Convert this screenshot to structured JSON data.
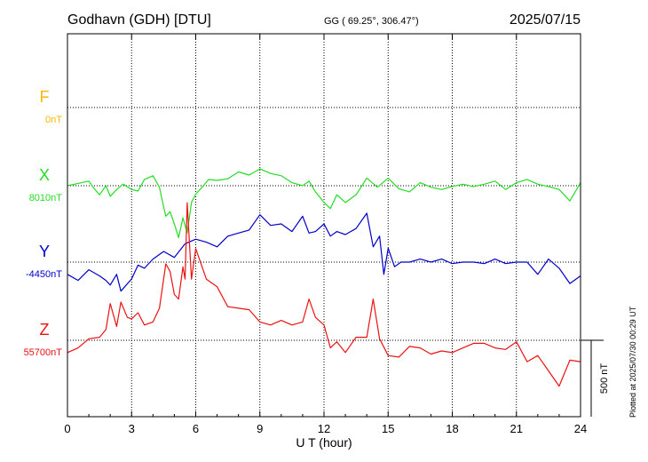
{
  "header": {
    "station": "Godhavn (GDH)  [DTU]",
    "coords": "GG ( 69.25°, 306.47°)",
    "date": "2025/07/15"
  },
  "side_note": "Plotted at 2025/07/30 00:29 UT",
  "colors": {
    "F": "#f5b800",
    "X": "#22dd22",
    "Y": "#0000cc",
    "Z": "#ee1111"
  },
  "chart_data": {
    "type": "line",
    "title": "Godhavn (GDH)  [DTU]",
    "xlabel": "U T (hour)",
    "xlim": [
      0,
      24
    ],
    "xticks": [
      "0",
      "3",
      "6",
      "9",
      "12",
      "15",
      "18",
      "21",
      "24"
    ],
    "scale_bar": {
      "value_nT": 500,
      "label": "500 nT"
    },
    "series": [
      {
        "name": "F",
        "baseline_label": "0nT",
        "baseline": 0,
        "x": [],
        "values": []
      },
      {
        "name": "X",
        "baseline_label": "8010nT",
        "baseline": 8010,
        "x": [
          0,
          0.5,
          1,
          1.2,
          1.5,
          1.8,
          2,
          2.3,
          2.6,
          3,
          3.3,
          3.6,
          4,
          4.3,
          4.5,
          4.6,
          4.8,
          5,
          5.2,
          5.4,
          5.6,
          5.8,
          6,
          6.3,
          6.6,
          7,
          7.5,
          8,
          8.5,
          9,
          9.5,
          10,
          10.5,
          11,
          11.3,
          11.6,
          12,
          12.3,
          12.6,
          13,
          13.5,
          14,
          14.5,
          15,
          15.5,
          16,
          16.5,
          17,
          17.5,
          18,
          18.5,
          19,
          19.5,
          20,
          20.5,
          21,
          21.5,
          22,
          22.5,
          23,
          23.5,
          24
        ],
        "values": [
          8010,
          8025,
          8040,
          8000,
          7950,
          8010,
          7940,
          7985,
          8020,
          7985,
          7975,
          8050,
          8075,
          8000,
          7870,
          7810,
          7840,
          7760,
          7670,
          7800,
          7700,
          7900,
          7955,
          8000,
          8050,
          8045,
          8055,
          8100,
          8080,
          8120,
          8090,
          8075,
          8030,
          8010,
          8040,
          7970,
          7900,
          7860,
          7950,
          7900,
          7950,
          8060,
          8000,
          8060,
          7990,
          7970,
          8030,
          8000,
          7985,
          8005,
          8020,
          8005,
          8020,
          8040,
          7985,
          8030,
          8050,
          8020,
          8005,
          7985,
          7910,
          8030
        ]
      },
      {
        "name": "Y",
        "baseline_label": "-4450nT",
        "baseline": -4450,
        "x": [
          0,
          0.5,
          1,
          1.5,
          1.8,
          2,
          2.3,
          2.5,
          3,
          3.3,
          3.6,
          4,
          4.5,
          5,
          5.5,
          6,
          6.5,
          7,
          7.5,
          8,
          8.5,
          9,
          9.5,
          10,
          10.5,
          11,
          11.3,
          11.6,
          12,
          12.3,
          12.6,
          13,
          13.5,
          14,
          14.3,
          14.6,
          14.8,
          15,
          15.3,
          15.6,
          16,
          16.5,
          17,
          17.5,
          18,
          18.5,
          19,
          19.5,
          20,
          20.5,
          21,
          21.5,
          22,
          22.5,
          23,
          23.5,
          24
        ],
        "values": [
          -4530,
          -4570,
          -4500,
          -4540,
          -4570,
          -4600,
          -4530,
          -4640,
          -4560,
          -4470,
          -4490,
          -4430,
          -4380,
          -4420,
          -4330,
          -4300,
          -4320,
          -4350,
          -4280,
          -4260,
          -4240,
          -4140,
          -4210,
          -4200,
          -4250,
          -4150,
          -4260,
          -4250,
          -4200,
          -4280,
          -4250,
          -4270,
          -4230,
          -4130,
          -4350,
          -4280,
          -4530,
          -4360,
          -4480,
          -4450,
          -4450,
          -4430,
          -4450,
          -4430,
          -4460,
          -4450,
          -4450,
          -4460,
          -4430,
          -4460,
          -4450,
          -4450,
          -4530,
          -4430,
          -4490,
          -4590,
          -4540
        ]
      },
      {
        "name": "Z",
        "baseline_label": "55700nT",
        "baseline": 55700,
        "x": [
          0,
          0.5,
          1,
          1.5,
          1.8,
          2,
          2.3,
          2.5,
          2.8,
          3,
          3.3,
          3.6,
          4,
          4.3,
          4.6,
          4.8,
          5,
          5.2,
          5.4,
          5.5,
          5.6,
          5.8,
          6,
          6.5,
          7,
          7.5,
          8,
          8.5,
          9,
          9.5,
          10,
          10.5,
          11,
          11.3,
          11.6,
          12,
          12.3,
          12.6,
          13,
          13.5,
          14,
          14.3,
          14.6,
          15,
          15.5,
          16,
          16.5,
          17,
          17.5,
          18,
          18.5,
          19,
          19.5,
          20,
          20.5,
          21,
          21.5,
          22,
          22.5,
          23,
          23.5,
          24
        ],
        "values": [
          55620,
          55650,
          55710,
          55720,
          55770,
          55940,
          55790,
          55950,
          55850,
          55840,
          55880,
          55800,
          55820,
          55910,
          56200,
          56150,
          56000,
          55970,
          56180,
          56100,
          56600,
          56100,
          56300,
          56100,
          56050,
          55920,
          55910,
          55900,
          55820,
          55800,
          55830,
          55800,
          55820,
          55970,
          55850,
          55800,
          55650,
          55690,
          55620,
          55720,
          55720,
          55970,
          55710,
          55600,
          55590,
          55660,
          55650,
          55610,
          55630,
          55620,
          55650,
          55680,
          55680,
          55650,
          55640,
          55690,
          55560,
          55600,
          55500,
          55400,
          55570,
          55560
        ]
      }
    ]
  }
}
